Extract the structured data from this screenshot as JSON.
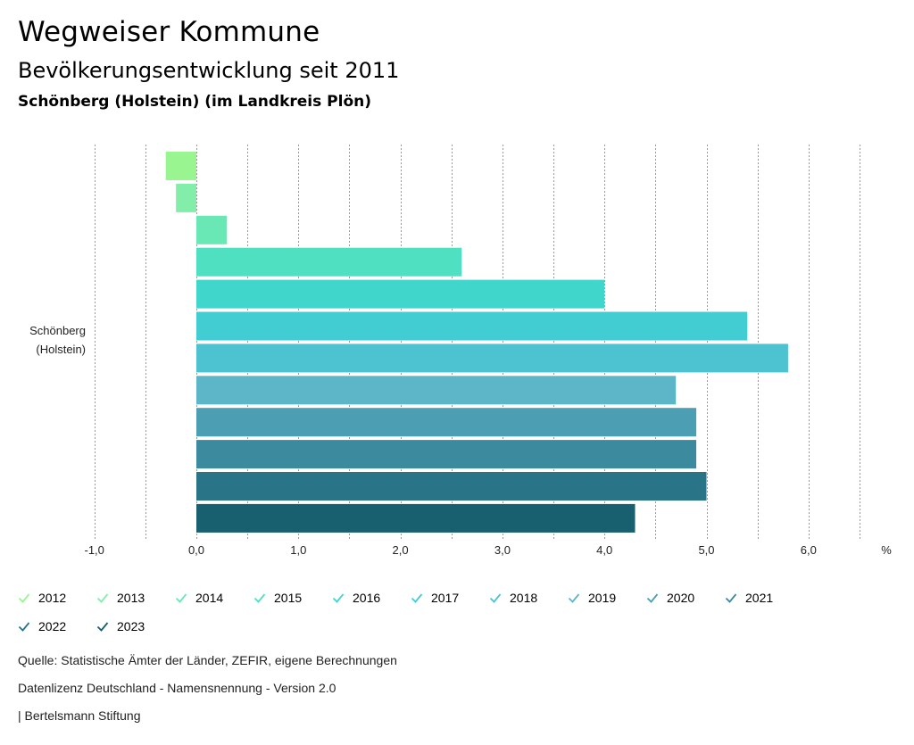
{
  "header": {
    "title": "Wegweiser Kommune",
    "subtitle": "Bevölkerungsentwicklung seit 2011",
    "region": "Schönberg (Holstein) (im Landkreis Plön)"
  },
  "chart_data": {
    "type": "bar",
    "orientation": "horizontal",
    "category_label": [
      "Schönberg",
      "(Holstein)"
    ],
    "series": [
      {
        "name": "2012",
        "value": -0.3,
        "color": "#98f58f"
      },
      {
        "name": "2013",
        "value": -0.2,
        "color": "#83eeaa"
      },
      {
        "name": "2014",
        "value": 0.3,
        "color": "#69e8b5"
      },
      {
        "name": "2015",
        "value": 2.6,
        "color": "#4fe0c2"
      },
      {
        "name": "2016",
        "value": 4.0,
        "color": "#40d6cc"
      },
      {
        "name": "2017",
        "value": 5.4,
        "color": "#42cdd3"
      },
      {
        "name": "2018",
        "value": 5.8,
        "color": "#4dc2d0"
      },
      {
        "name": "2019",
        "value": 4.7,
        "color": "#5db6c8"
      },
      {
        "name": "2020",
        "value": 4.9,
        "color": "#4c9fb3"
      },
      {
        "name": "2021",
        "value": 4.9,
        "color": "#3c8a9e"
      },
      {
        "name": "2022",
        "value": 5.0,
        "color": "#297587"
      },
      {
        "name": "2023",
        "value": 4.3,
        "color": "#185f6f"
      }
    ],
    "x_ticks": [
      "-1,0",
      "0,0",
      "1,0",
      "2,0",
      "3,0",
      "4,0",
      "5,0",
      "6,0"
    ],
    "x_tick_values": [
      -1,
      0,
      1,
      2,
      3,
      4,
      5,
      6
    ],
    "grid_values": [
      -1,
      -0.5,
      0,
      0.5,
      1,
      1.5,
      2,
      2.5,
      3,
      3.5,
      4,
      4.5,
      5,
      5.5,
      6,
      6.5
    ],
    "x_unit": "%",
    "xlim": [
      -1,
      6.5
    ],
    "legend_position": "bottom"
  },
  "footer": {
    "source": "Quelle: Statistische Ämter der Länder, ZEFIR, eigene Berechnungen",
    "license": "Datenlizenz Deutschland - Namensnennung - Version 2.0",
    "publisher": "| Bertelsmann Stiftung"
  }
}
